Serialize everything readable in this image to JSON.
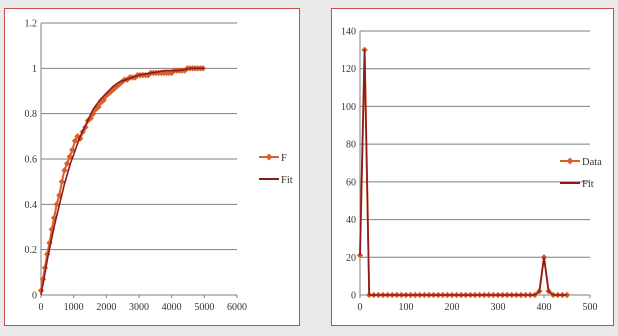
{
  "chart_data": [
    {
      "type": "line",
      "xlim": [
        0,
        6000
      ],
      "ylim": [
        0,
        1.2
      ],
      "x_ticks": [
        "0",
        "1000",
        "2000",
        "3000",
        "4000",
        "5000",
        "6000"
      ],
      "y_ticks": [
        "0",
        "0.2",
        "0.4",
        "0.6",
        "0.8",
        "1",
        "1.2"
      ],
      "grid": "horizontal",
      "legend_position": "right",
      "series": [
        {
          "name": "F",
          "color": "#d9602a",
          "marker": "diamond",
          "points": [
            [
              0,
              0.02
            ],
            [
              60,
              0.07
            ],
            [
              120,
              0.12
            ],
            [
              190,
              0.18
            ],
            [
              260,
              0.23
            ],
            [
              330,
              0.29
            ],
            [
              400,
              0.34
            ],
            [
              480,
              0.4
            ],
            [
              560,
              0.44
            ],
            [
              640,
              0.5
            ],
            [
              720,
              0.55
            ],
            [
              800,
              0.58
            ],
            [
              880,
              0.61
            ],
            [
              960,
              0.64
            ],
            [
              1040,
              0.68
            ],
            [
              1120,
              0.7
            ],
            [
              1200,
              0.69
            ],
            [
              1280,
              0.72
            ],
            [
              1360,
              0.74
            ],
            [
              1440,
              0.77
            ],
            [
              1520,
              0.78
            ],
            [
              1600,
              0.8
            ],
            [
              1680,
              0.82
            ],
            [
              1760,
              0.83
            ],
            [
              1840,
              0.85
            ],
            [
              1920,
              0.86
            ],
            [
              2000,
              0.88
            ],
            [
              2080,
              0.89
            ],
            [
              2160,
              0.9
            ],
            [
              2240,
              0.91
            ],
            [
              2320,
              0.92
            ],
            [
              2400,
              0.93
            ],
            [
              2480,
              0.94
            ],
            [
              2560,
              0.95
            ],
            [
              2640,
              0.95
            ],
            [
              2720,
              0.96
            ],
            [
              2800,
              0.96
            ],
            [
              2880,
              0.96
            ],
            [
              2960,
              0.97
            ],
            [
              3040,
              0.97
            ],
            [
              3120,
              0.97
            ],
            [
              3200,
              0.97
            ],
            [
              3280,
              0.97
            ],
            [
              3360,
              0.98
            ],
            [
              3440,
              0.98
            ],
            [
              3520,
              0.98
            ],
            [
              3600,
              0.98
            ],
            [
              3680,
              0.98
            ],
            [
              3760,
              0.98
            ],
            [
              3840,
              0.98
            ],
            [
              3920,
              0.98
            ],
            [
              4000,
              0.98
            ],
            [
              4080,
              0.99
            ],
            [
              4160,
              0.99
            ],
            [
              4240,
              0.99
            ],
            [
              4320,
              0.99
            ],
            [
              4400,
              0.99
            ],
            [
              4480,
              1.0
            ],
            [
              4560,
              1.0
            ],
            [
              4640,
              1.0
            ],
            [
              4720,
              1.0
            ],
            [
              4800,
              1.0
            ],
            [
              4880,
              1.0
            ],
            [
              4960,
              1.0
            ]
          ]
        },
        {
          "name": "Fit",
          "color": "#8b1a1a",
          "marker": "none",
          "points": [
            [
              0,
              0.0
            ],
            [
              100,
              0.08
            ],
            [
              200,
              0.16
            ],
            [
              300,
              0.23
            ],
            [
              400,
              0.3
            ],
            [
              500,
              0.36
            ],
            [
              600,
              0.42
            ],
            [
              700,
              0.48
            ],
            [
              800,
              0.53
            ],
            [
              900,
              0.58
            ],
            [
              1000,
              0.62
            ],
            [
              1100,
              0.66
            ],
            [
              1200,
              0.7
            ],
            [
              1300,
              0.73
            ],
            [
              1400,
              0.76
            ],
            [
              1500,
              0.79
            ],
            [
              1600,
              0.82
            ],
            [
              1800,
              0.86
            ],
            [
              2000,
              0.89
            ],
            [
              2200,
              0.92
            ],
            [
              2400,
              0.94
            ],
            [
              2600,
              0.95
            ],
            [
              2800,
              0.96
            ],
            [
              3000,
              0.97
            ],
            [
              3400,
              0.98
            ],
            [
              3800,
              0.99
            ],
            [
              4200,
              0.99
            ],
            [
              4600,
              1.0
            ],
            [
              5000,
              1.0
            ]
          ]
        }
      ]
    },
    {
      "type": "line",
      "xlim": [
        0,
        500
      ],
      "ylim": [
        0,
        140
      ],
      "x_ticks": [
        "0",
        "100",
        "200",
        "300",
        "400",
        "500"
      ],
      "y_ticks": [
        "0",
        "20",
        "40",
        "60",
        "80",
        "100",
        "120",
        "140"
      ],
      "grid": "horizontal",
      "legend_position": "right",
      "series": [
        {
          "name": "Data",
          "color": "#d9602a",
          "marker": "diamond",
          "points": [
            [
              0,
              21
            ],
            [
              10,
              130
            ],
            [
              20,
              0
            ],
            [
              30,
              0
            ],
            [
              40,
              0
            ],
            [
              50,
              0
            ],
            [
              60,
              0
            ],
            [
              70,
              0
            ],
            [
              80,
              0
            ],
            [
              90,
              0
            ],
            [
              100,
              0
            ],
            [
              110,
              0
            ],
            [
              120,
              0
            ],
            [
              130,
              0
            ],
            [
              140,
              0
            ],
            [
              150,
              0
            ],
            [
              160,
              0
            ],
            [
              170,
              0
            ],
            [
              180,
              0
            ],
            [
              190,
              0
            ],
            [
              200,
              0
            ],
            [
              210,
              0
            ],
            [
              220,
              0
            ],
            [
              230,
              0
            ],
            [
              240,
              0
            ],
            [
              250,
              0
            ],
            [
              260,
              0
            ],
            [
              270,
              0
            ],
            [
              280,
              0
            ],
            [
              290,
              0
            ],
            [
              300,
              0
            ],
            [
              310,
              0
            ],
            [
              320,
              0
            ],
            [
              330,
              0
            ],
            [
              340,
              0
            ],
            [
              350,
              0
            ],
            [
              360,
              0
            ],
            [
              370,
              0
            ],
            [
              380,
              0
            ],
            [
              390,
              2
            ],
            [
              400,
              20
            ],
            [
              410,
              2
            ],
            [
              420,
              0
            ],
            [
              430,
              0
            ],
            [
              440,
              0
            ],
            [
              450,
              0
            ]
          ]
        },
        {
          "name": "Fit",
          "color": "#8b1a1a",
          "marker": "none",
          "points": [
            [
              0,
              21
            ],
            [
              10,
              130
            ],
            [
              20,
              0
            ],
            [
              380,
              0
            ],
            [
              390,
              2
            ],
            [
              400,
              20
            ],
            [
              410,
              2
            ],
            [
              420,
              0
            ],
            [
              450,
              0
            ]
          ]
        }
      ]
    }
  ]
}
